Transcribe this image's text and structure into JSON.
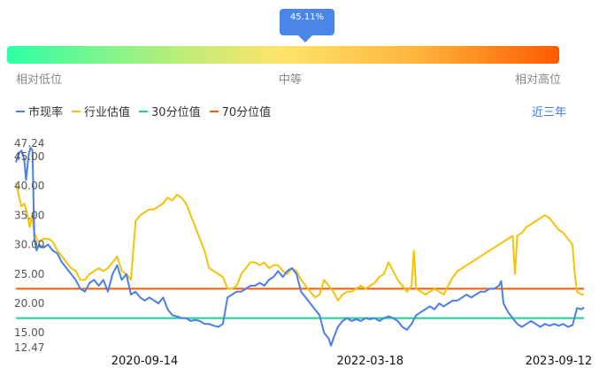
{
  "tooltip": {
    "value": "45.11%"
  },
  "scale": {
    "low": "相对低位",
    "mid": "中等",
    "high": "相对高位"
  },
  "legend": [
    {
      "name": "市现率",
      "color": "#4a7ee8"
    },
    {
      "name": "行业估值",
      "color": "#f5c20a"
    },
    {
      "name": "30分位值",
      "color": "#19d394"
    },
    {
      "name": "70分位值",
      "color": "#ff5a00"
    }
  ],
  "range_link": "近三年",
  "chart_data": {
    "type": "line",
    "title": "",
    "xlabel": "",
    "ylabel": "",
    "y_ticks": [
      "47.24",
      "45.00",
      "40.00",
      "35.00",
      "30.00",
      "25.00",
      "20.00",
      "15.00",
      "12.47"
    ],
    "x_ticks": [
      "2020-09-14",
      "2022-03-18",
      "2023-09-12"
    ],
    "ylim": [
      12.47,
      47.24
    ],
    "series": [
      {
        "name": "市现率",
        "color": "#4a7ee8",
        "points": [
          [
            0,
            44
          ],
          [
            0.6,
            45.5
          ],
          [
            1.2,
            46
          ],
          [
            1.8,
            44.5
          ],
          [
            2.2,
            41
          ],
          [
            2.8,
            45.5
          ],
          [
            3.2,
            46.5
          ],
          [
            3.6,
            46
          ],
          [
            4,
            31
          ],
          [
            4.5,
            29
          ],
          [
            5,
            30
          ],
          [
            6,
            29.5
          ],
          [
            7,
            30
          ],
          [
            8,
            29
          ],
          [
            9,
            28.5
          ],
          [
            10,
            27
          ],
          [
            11,
            26
          ],
          [
            12,
            25
          ],
          [
            13,
            24
          ],
          [
            14,
            22.5
          ],
          [
            15,
            22
          ],
          [
            16,
            23.5
          ],
          [
            17,
            24
          ],
          [
            18,
            23
          ],
          [
            19,
            24
          ],
          [
            20,
            22
          ],
          [
            21,
            25
          ],
          [
            22,
            26.5
          ],
          [
            23,
            24
          ],
          [
            24,
            25
          ],
          [
            25,
            21.5
          ],
          [
            26,
            22
          ],
          [
            27,
            21
          ],
          [
            28,
            20.5
          ],
          [
            29,
            21
          ],
          [
            30,
            20.5
          ],
          [
            31,
            20
          ],
          [
            32,
            21
          ],
          [
            33,
            19
          ],
          [
            34,
            18
          ],
          [
            35,
            17.8
          ],
          [
            36,
            17.5
          ],
          [
            37,
            17.5
          ],
          [
            38,
            17
          ],
          [
            39,
            17.2
          ],
          [
            40,
            17
          ],
          [
            41,
            16.5
          ],
          [
            42,
            16.5
          ],
          [
            43,
            16.2
          ],
          [
            44,
            16
          ],
          [
            45,
            16.5
          ],
          [
            46,
            21
          ],
          [
            47,
            21.5
          ],
          [
            48,
            22
          ],
          [
            49,
            22
          ],
          [
            50,
            22.5
          ],
          [
            51,
            23
          ],
          [
            52,
            23
          ],
          [
            53,
            23.5
          ],
          [
            54,
            23
          ],
          [
            55,
            24
          ],
          [
            56,
            24.5
          ],
          [
            57,
            25.5
          ],
          [
            58,
            24.5
          ],
          [
            59,
            25.5
          ],
          [
            60,
            26
          ],
          [
            61,
            25
          ],
          [
            62,
            22
          ],
          [
            63,
            21
          ],
          [
            64,
            20
          ],
          [
            65,
            19
          ],
          [
            66,
            18
          ],
          [
            67,
            15
          ],
          [
            68,
            14
          ],
          [
            68.5,
            12.8
          ],
          [
            69,
            14
          ],
          [
            70,
            16
          ],
          [
            71,
            17
          ],
          [
            72,
            17.5
          ],
          [
            73,
            17
          ],
          [
            74,
            17.3
          ],
          [
            75,
            17
          ],
          [
            76,
            17.5
          ],
          [
            77,
            17.3
          ],
          [
            78,
            17.5
          ],
          [
            79,
            17
          ],
          [
            80,
            17.5
          ],
          [
            81,
            17.8
          ],
          [
            82,
            17.5
          ],
          [
            83,
            17
          ],
          [
            84,
            16
          ],
          [
            85,
            15.5
          ],
          [
            86,
            16.5
          ],
          [
            87,
            18
          ],
          [
            88,
            18.5
          ],
          [
            89,
            19
          ],
          [
            90,
            19.5
          ],
          [
            91,
            19
          ],
          [
            92,
            20
          ],
          [
            93,
            19.5
          ],
          [
            94,
            20
          ],
          [
            95,
            20.5
          ],
          [
            96,
            20.5
          ],
          [
            97,
            21
          ],
          [
            98,
            21.5
          ],
          [
            99,
            21
          ],
          [
            100,
            21.5
          ],
          [
            101,
            22
          ],
          [
            102,
            22
          ],
          [
            103,
            22.5
          ],
          [
            104,
            22.5
          ],
          [
            105,
            23
          ],
          [
            105.5,
            23.8
          ],
          [
            106,
            20
          ],
          [
            107,
            18.5
          ],
          [
            108,
            17.5
          ],
          [
            109,
            16.5
          ],
          [
            110,
            16
          ],
          [
            111,
            16.5
          ],
          [
            112,
            17
          ],
          [
            113,
            16.5
          ],
          [
            114,
            16
          ],
          [
            115,
            16.5
          ],
          [
            116,
            16.2
          ],
          [
            117,
            16.5
          ],
          [
            118,
            16.2
          ],
          [
            119,
            16.5
          ],
          [
            120,
            16
          ],
          [
            121,
            16.3
          ],
          [
            122,
            19.2
          ],
          [
            123,
            19
          ],
          [
            123.5,
            19.3
          ]
        ]
      },
      {
        "name": "行业估值",
        "color": "#f5c20a",
        "points": [
          [
            0,
            40.5
          ],
          [
            0.6,
            38.5
          ],
          [
            1.2,
            36.5
          ],
          [
            1.8,
            37
          ],
          [
            2.5,
            35
          ],
          [
            3,
            33
          ],
          [
            3.5,
            35
          ],
          [
            4,
            32
          ],
          [
            4.5,
            31
          ],
          [
            5,
            30.5
          ],
          [
            6,
            31
          ],
          [
            7,
            31
          ],
          [
            8,
            30.5
          ],
          [
            9,
            29
          ],
          [
            10,
            28
          ],
          [
            11,
            27
          ],
          [
            12,
            26
          ],
          [
            13,
            25.5
          ],
          [
            14,
            24
          ],
          [
            15,
            24
          ],
          [
            16,
            25
          ],
          [
            17,
            25.5
          ],
          [
            18,
            26
          ],
          [
            19,
            25.5
          ],
          [
            20,
            26
          ],
          [
            21,
            27
          ],
          [
            22,
            28
          ],
          [
            23,
            25.5
          ],
          [
            24,
            25
          ],
          [
            25,
            24
          ],
          [
            26,
            34
          ],
          [
            27,
            35
          ],
          [
            28,
            35.5
          ],
          [
            29,
            36
          ],
          [
            30,
            36
          ],
          [
            31,
            36.5
          ],
          [
            32,
            37
          ],
          [
            33,
            38
          ],
          [
            34,
            37.5
          ],
          [
            35,
            38.5
          ],
          [
            36,
            38
          ],
          [
            37,
            37
          ],
          [
            38,
            35
          ],
          [
            39,
            33
          ],
          [
            40,
            31
          ],
          [
            41,
            29
          ],
          [
            42,
            26
          ],
          [
            43,
            25.5
          ],
          [
            44,
            25
          ],
          [
            45,
            24.5
          ],
          [
            46,
            22.5
          ],
          [
            47,
            22.5
          ],
          [
            48,
            23
          ],
          [
            49,
            25
          ],
          [
            50,
            26
          ],
          [
            51,
            27
          ],
          [
            52,
            27
          ],
          [
            53,
            26.5
          ],
          [
            54,
            27
          ],
          [
            55,
            26
          ],
          [
            56,
            26.5
          ],
          [
            57,
            26.5
          ],
          [
            58,
            25.5
          ],
          [
            59,
            25
          ],
          [
            60,
            26
          ],
          [
            61,
            25.5
          ],
          [
            62,
            24
          ],
          [
            63,
            23
          ],
          [
            64,
            22
          ],
          [
            65,
            21
          ],
          [
            66,
            21.5
          ],
          [
            67,
            24
          ],
          [
            68,
            23
          ],
          [
            69,
            22
          ],
          [
            70,
            20.5
          ],
          [
            71,
            21.5
          ],
          [
            72,
            22
          ],
          [
            73,
            22
          ],
          [
            74,
            22.5
          ],
          [
            75,
            23
          ],
          [
            76,
            22.5
          ],
          [
            77,
            23
          ],
          [
            78,
            23.5
          ],
          [
            79,
            24.5
          ],
          [
            80,
            25
          ],
          [
            81,
            27
          ],
          [
            82,
            25.5
          ],
          [
            83,
            24
          ],
          [
            84,
            23
          ],
          [
            85,
            22
          ],
          [
            86,
            23
          ],
          [
            86.5,
            29
          ],
          [
            87,
            22.5
          ],
          [
            88,
            22
          ],
          [
            89,
            21.5
          ],
          [
            90,
            22
          ],
          [
            91,
            22.5
          ],
          [
            92,
            22
          ],
          [
            93,
            21.5
          ],
          [
            94,
            23
          ],
          [
            95,
            24.5
          ],
          [
            96,
            25.5
          ],
          [
            97,
            26
          ],
          [
            98,
            26.5
          ],
          [
            99,
            27
          ],
          [
            100,
            27.5
          ],
          [
            101,
            28
          ],
          [
            102,
            28.5
          ],
          [
            103,
            29
          ],
          [
            104,
            29.5
          ],
          [
            105,
            30
          ],
          [
            106,
            30.5
          ],
          [
            107,
            31
          ],
          [
            108,
            31.5
          ],
          [
            108.5,
            25
          ],
          [
            109,
            31.5
          ],
          [
            110,
            32
          ],
          [
            111,
            33
          ],
          [
            112,
            33.5
          ],
          [
            113,
            34
          ],
          [
            114,
            34.5
          ],
          [
            115,
            35
          ],
          [
            116,
            34.5
          ],
          [
            117,
            33.5
          ],
          [
            118,
            32.5
          ],
          [
            119,
            32
          ],
          [
            120,
            31
          ],
          [
            121,
            30
          ],
          [
            121.5,
            25
          ],
          [
            122,
            22
          ],
          [
            123,
            21.5
          ],
          [
            123.5,
            21.5
          ]
        ]
      },
      {
        "name": "30分位值",
        "color": "#19d394",
        "points": [
          [
            0,
            17.5
          ],
          [
            123.5,
            17.5
          ]
        ]
      },
      {
        "name": "70分位值",
        "color": "#ff5a00",
        "points": [
          [
            0,
            22.5
          ],
          [
            123.5,
            22.5
          ]
        ]
      }
    ]
  }
}
